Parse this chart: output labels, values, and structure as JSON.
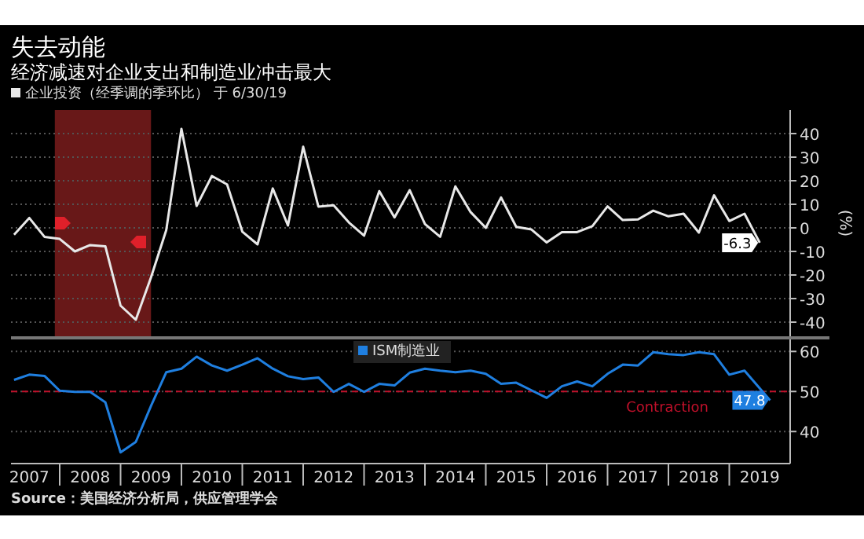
{
  "chart_data": [
    {
      "type": "line",
      "title": "失去动能",
      "subtitle": "经济减速对企业支出和制造业冲击最大",
      "ylabel": "(%)",
      "x": [
        2007.25,
        2007.5,
        2007.75,
        2008,
        2008.25,
        2008.5,
        2008.75,
        2009,
        2009.25,
        2009.5,
        2009.75,
        2010,
        2010.25,
        2010.5,
        2010.75,
        2011,
        2011.25,
        2011.5,
        2011.75,
        2012,
        2012.25,
        2012.5,
        2012.75,
        2013,
        2013.25,
        2013.5,
        2013.75,
        2014,
        2014.25,
        2014.5,
        2014.75,
        2015,
        2015.25,
        2015.5,
        2015.75,
        2016,
        2016.25,
        2016.5,
        2016.75,
        2017,
        2017.25,
        2017.5,
        2017.75,
        2018,
        2018.25,
        2018.5,
        2018.75,
        2019,
        2019.25,
        2019.5
      ],
      "series": [
        {
          "name": "企业投资（经季调的季环比） 于 6/30/19",
          "color": "#e8e8e8",
          "values": [
            -2.9,
            4.2,
            -3.8,
            -4.7,
            -10,
            -7.3,
            -7.8,
            -33,
            -39,
            -21,
            -1,
            42,
            9.3,
            22,
            18.4,
            -1.6,
            -7,
            16.7,
            1,
            34.4,
            9,
            9.6,
            2.3,
            -3.3,
            15.6,
            4.4,
            16,
            1.6,
            -3.8,
            17.6,
            6.7,
            0,
            12.9,
            0.4,
            -0.7,
            -6.2,
            -1.8,
            -1.8,
            0.7,
            9.1,
            3.3,
            3.6,
            7.3,
            4.9,
            6,
            -2,
            13.8,
            2.9,
            6,
            -6.3
          ]
        }
      ],
      "xlim": [
        2007.2,
        2020
      ],
      "ylim": [
        -46,
        50
      ],
      "yticks": [
        -40,
        -30,
        -20,
        -10,
        0,
        10,
        20,
        30,
        40
      ],
      "grid": "y",
      "legend": "top left",
      "tick_labels": "y",
      "bands": [
        {
          "axis": "x",
          "from": 2007.92,
          "to": 2009.5,
          "color": "#7a1c1c"
        }
      ],
      "annotations": [
        {
          "text": "-6.3",
          "x": 2019.5,
          "y": -6.3
        }
      ]
    },
    {
      "type": "line",
      "series": [
        {
          "name": "ISM制造业",
          "color": "#1f7fe0",
          "x": [
            2007.25,
            2007.5,
            2007.75,
            2008,
            2008.25,
            2008.5,
            2008.75,
            2009,
            2009.25,
            2009.5,
            2009.75,
            2010,
            2010.25,
            2010.5,
            2010.75,
            2011,
            2011.25,
            2011.5,
            2011.75,
            2012,
            2012.25,
            2012.5,
            2012.75,
            2013,
            2013.25,
            2013.5,
            2013.75,
            2014,
            2014.25,
            2014.5,
            2014.75,
            2015,
            2015.25,
            2015.5,
            2015.75,
            2016,
            2016.25,
            2016.5,
            2016.75,
            2017,
            2017.25,
            2017.5,
            2017.75,
            2018,
            2018.25,
            2018.5,
            2018.75,
            2019,
            2019.25,
            2019.67
          ],
          "values": [
            52.9,
            54.2,
            53.9,
            50.2,
            49.9,
            49.9,
            47.3,
            34.8,
            37.4,
            46.4,
            54.8,
            55.7,
            58.7,
            56.5,
            55.2,
            56.7,
            58.3,
            55.7,
            53.8,
            53.1,
            53.5,
            49.9,
            51.9,
            49.9,
            51.9,
            51.5,
            54.7,
            55.7,
            55.2,
            54.8,
            55.2,
            54.4,
            51.9,
            52.2,
            50.3,
            48.4,
            51.3,
            52.5,
            51.3,
            54.4,
            56.7,
            56.5,
            59.8,
            59.3,
            59.1,
            59.8,
            59.3,
            54.2,
            55.2,
            47.8
          ]
        }
      ],
      "xlim": [
        2007.2,
        2020
      ],
      "ylim": [
        32,
        63
      ],
      "yticks": [
        40,
        50,
        60
      ],
      "xticks": [
        {
          "value": 2007.5,
          "label": "2007"
        },
        {
          "value": 2008,
          "label": null
        },
        {
          "value": 2008.5,
          "label": "2008"
        },
        {
          "value": 2009,
          "label": null
        },
        {
          "value": 2009.5,
          "label": "2009"
        },
        {
          "value": 2010,
          "label": null
        },
        {
          "value": 2010.5,
          "label": "2010"
        },
        {
          "value": 2011,
          "label": null
        },
        {
          "value": 2011.5,
          "label": "2011"
        },
        {
          "value": 2012,
          "label": null
        },
        {
          "value": 2012.5,
          "label": "2012"
        },
        {
          "value": 2013,
          "label": null
        },
        {
          "value": 2013.5,
          "label": "2013"
        },
        {
          "value": 2014,
          "label": null
        },
        {
          "value": 2014.5,
          "label": "2014"
        },
        {
          "value": 2015,
          "label": null
        },
        {
          "value": 2015.5,
          "label": "2015"
        },
        {
          "value": 2016,
          "label": null
        },
        {
          "value": 2016.5,
          "label": "2016"
        },
        {
          "value": 2017,
          "label": null
        },
        {
          "value": 2017.5,
          "label": "2017"
        },
        {
          "value": 2018,
          "label": null
        },
        {
          "value": 2018.5,
          "label": "2018"
        },
        {
          "value": 2019,
          "label": null
        },
        {
          "value": 2019.5,
          "label": "2019"
        }
      ],
      "grid": "y",
      "legend": "top",
      "ref_lines": [
        {
          "axis": "y",
          "value": 50,
          "label": "Contraction",
          "color": "#c0102a",
          "line_style": "dashed"
        }
      ],
      "annotations": [
        {
          "text": "47.8",
          "x": 2019.67,
          "y": 47.8
        },
        "Source：美国经济分析局，供应管理学会"
      ]
    }
  ]
}
